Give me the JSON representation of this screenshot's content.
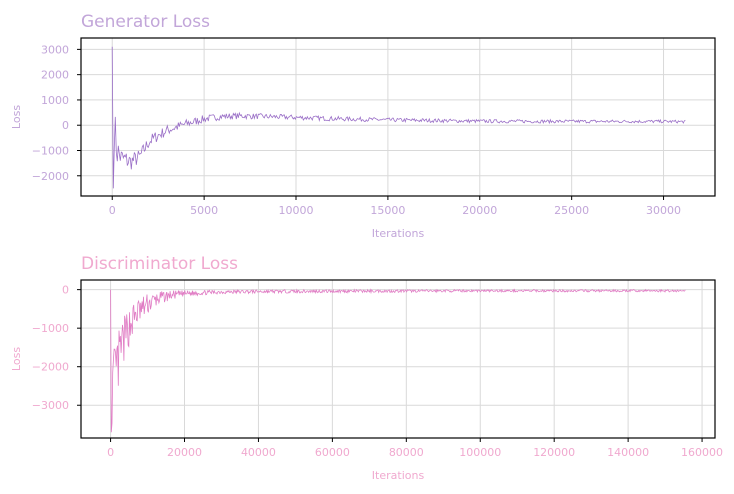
{
  "colors": {
    "panel1_text": "#c2a6d9",
    "panel1_line": "#9a6fc7",
    "panel2_text": "#f0a9cf",
    "panel2_line": "#e07cc4",
    "grid": "#d9d9d9",
    "frame": "#000000"
  },
  "chart_data": [
    {
      "type": "line",
      "title": "Generator Loss",
      "xlabel": "Iterations",
      "ylabel": "Loss",
      "xlim": [
        -1700,
        32800
      ],
      "ylim": [
        -2800,
        3450
      ],
      "xticks": [
        0,
        5000,
        10000,
        15000,
        20000,
        25000,
        30000
      ],
      "yticks": [
        -2000,
        -1000,
        0,
        1000,
        2000,
        3000
      ],
      "xtick_labels": [
        "0",
        "5000",
        "10000",
        "15000",
        "20000",
        "25000",
        "30000"
      ],
      "ytick_labels": [
        "−2000",
        "−1000",
        "0",
        "1000",
        "2000",
        "3000"
      ],
      "grid": true,
      "series": [
        {
          "x": [
            0,
            60,
            120,
            250,
            500,
            1000,
            1500,
            2000,
            2500,
            3000,
            4000,
            5000,
            6000,
            7000,
            8000,
            10000,
            12000,
            15000,
            18000,
            20000,
            25000,
            30000,
            31200
          ],
          "y": [
            3100,
            -2500,
            100,
            -1000,
            -1300,
            -1450,
            -1250,
            -650,
            -400,
            -200,
            50,
            250,
            350,
            370,
            350,
            310,
            260,
            210,
            180,
            160,
            150,
            150,
            140
          ],
          "noise": [
            0,
            0,
            800,
            700,
            450,
            350,
            300,
            260,
            230,
            210,
            180,
            150,
            130,
            120,
            110,
            100,
            90,
            80,
            75,
            70,
            65,
            60,
            60
          ]
        }
      ]
    },
    {
      "type": "line",
      "title": "Discriminator Loss",
      "xlabel": "Iterations",
      "ylabel": "Loss",
      "xlim": [
        -8000,
        163500
      ],
      "ylim": [
        -3850,
        250
      ],
      "xticks": [
        0,
        20000,
        40000,
        60000,
        80000,
        100000,
        120000,
        140000,
        160000
      ],
      "yticks": [
        -3000,
        -2000,
        -1000,
        0
      ],
      "xtick_labels": [
        "0",
        "20000",
        "40000",
        "60000",
        "80000",
        "100000",
        "120000",
        "140000",
        "160000"
      ],
      "ytick_labels": [
        "−3000",
        "−2000",
        "−1000",
        "0"
      ],
      "grid": true,
      "series": [
        {
          "x": [
            0,
            200,
            600,
            1500,
            3000,
            5000,
            7000,
            10000,
            13000,
            16000,
            20000,
            25000,
            30000,
            40000,
            60000,
            80000,
            100000,
            120000,
            140000,
            155600
          ],
          "y": [
            0,
            -3700,
            -2400,
            -2200,
            -1500,
            -950,
            -620,
            -380,
            -230,
            -150,
            -100,
            -80,
            -60,
            -50,
            -40,
            -35,
            -30,
            -30,
            -30,
            -30
          ],
          "noise": [
            0,
            0,
            800,
            900,
            700,
            500,
            380,
            280,
            180,
            120,
            80,
            60,
            50,
            45,
            40,
            35,
            30,
            30,
            30,
            30
          ]
        }
      ]
    }
  ]
}
